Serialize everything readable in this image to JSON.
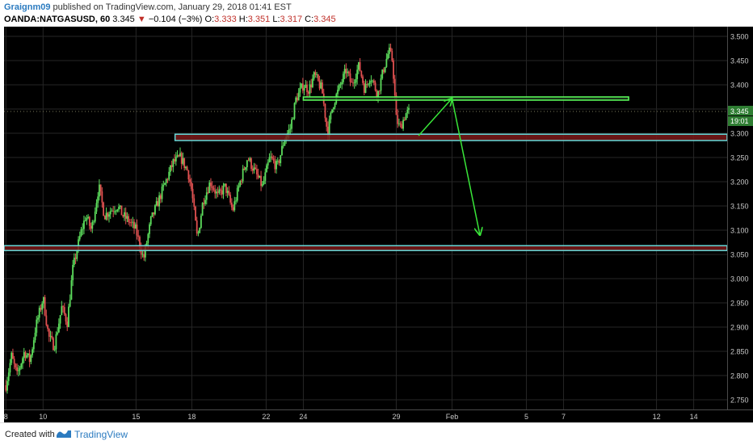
{
  "header": {
    "author": "Graignm09",
    "published": "published on TradingView.com, January 29, 2018 01:41 EST",
    "symbol": "OANDA:NATGASUSD, 60",
    "last": "3.345",
    "change_arrow": "▼",
    "change": "−0.104 (−3%)",
    "o_label": "O:",
    "o_value": "3.333",
    "h_label": "H:",
    "h_value": "3.351",
    "l_label": "L:",
    "l_value": "3.317",
    "c_label": "C:",
    "c_value": "3.345"
  },
  "footer": {
    "created_with": "Created with",
    "brand": "TradingView",
    "logo_icon": "tradingview-logo-icon"
  },
  "chart_data": {
    "type": "candlestick",
    "ylim": [
      2.73,
      3.52
    ],
    "y_ticks": [
      "3.500",
      "3.450",
      "3.400",
      "3.350",
      "3.300",
      "3.250",
      "3.200",
      "3.150",
      "3.100",
      "3.050",
      "3.000",
      "2.950",
      "2.900",
      "2.850",
      "2.800",
      "2.750"
    ],
    "x_ticks": [
      {
        "label": "8",
        "day": 0
      },
      {
        "label": "10",
        "day": 2
      },
      {
        "label": "15",
        "day": 7
      },
      {
        "label": "18",
        "day": 10
      },
      {
        "label": "22",
        "day": 14
      },
      {
        "label": "24",
        "day": 16
      },
      {
        "label": "29",
        "day": 21
      },
      {
        "label": "Feb",
        "day": 24
      },
      {
        "label": "5",
        "day": 28
      },
      {
        "label": "7",
        "day": 30
      },
      {
        "label": "12",
        "day": 35
      },
      {
        "label": "14",
        "day": 37
      }
    ],
    "x_range_days": [
      -0.1,
      38.8
    ],
    "current_price": "3.345",
    "countdown": "19:01",
    "price_line": 3.345,
    "path": [
      [
        0.0,
        2.78
      ],
      [
        0.3,
        2.84
      ],
      [
        0.6,
        2.8
      ],
      [
        1.0,
        2.85
      ],
      [
        1.3,
        2.83
      ],
      [
        1.6,
        2.9
      ],
      [
        2.0,
        2.96
      ],
      [
        2.3,
        2.88
      ],
      [
        2.6,
        2.86
      ],
      [
        3.0,
        2.94
      ],
      [
        3.3,
        2.91
      ],
      [
        3.6,
        3.02
      ],
      [
        4.0,
        3.09
      ],
      [
        4.3,
        3.13
      ],
      [
        4.6,
        3.1
      ],
      [
        5.0,
        3.19
      ],
      [
        5.3,
        3.13
      ],
      [
        5.6,
        3.14
      ],
      [
        6.0,
        3.15
      ],
      [
        6.3,
        3.13
      ],
      [
        6.6,
        3.12
      ],
      [
        7.0,
        3.1
      ],
      [
        7.4,
        3.04
      ],
      [
        7.8,
        3.12
      ],
      [
        8.2,
        3.16
      ],
      [
        8.6,
        3.2
      ],
      [
        9.0,
        3.24
      ],
      [
        9.4,
        3.25
      ],
      [
        9.8,
        3.22
      ],
      [
        10.0,
        3.18
      ],
      [
        10.3,
        3.08
      ],
      [
        10.6,
        3.16
      ],
      [
        11.0,
        3.2
      ],
      [
        11.4,
        3.17
      ],
      [
        11.8,
        3.19
      ],
      [
        12.2,
        3.14
      ],
      [
        12.6,
        3.2
      ],
      [
        13.0,
        3.25
      ],
      [
        13.4,
        3.22
      ],
      [
        13.8,
        3.19
      ],
      [
        14.2,
        3.25
      ],
      [
        14.6,
        3.23
      ],
      [
        15.0,
        3.29
      ],
      [
        15.3,
        3.31
      ],
      [
        15.6,
        3.37
      ],
      [
        16.0,
        3.4
      ],
      [
        16.3,
        3.39
      ],
      [
        16.6,
        3.42
      ],
      [
        17.0,
        3.39
      ],
      [
        17.3,
        3.3
      ],
      [
        17.6,
        3.36
      ],
      [
        18.0,
        3.4
      ],
      [
        18.3,
        3.43
      ],
      [
        18.6,
        3.4
      ],
      [
        19.0,
        3.44
      ],
      [
        19.3,
        3.39
      ],
      [
        19.6,
        3.42
      ],
      [
        20.0,
        3.38
      ],
      [
        20.3,
        3.43
      ],
      [
        20.6,
        3.47
      ],
      [
        20.8,
        3.45
      ],
      [
        21.0,
        3.33
      ],
      [
        21.2,
        3.31
      ],
      [
        21.5,
        3.34
      ],
      [
        21.7,
        3.345
      ]
    ],
    "zones": [
      {
        "name": "upper-resistance-zone",
        "y_top": 3.375,
        "y_bottom": 3.369,
        "x_start_day": 16.0,
        "x_end_day": 33.5,
        "fill": "#1c3a1c",
        "stroke": "#5cff5c"
      },
      {
        "name": "support-zone",
        "y_top": 3.298,
        "y_bottom": 3.285,
        "x_start_day": 9.1,
        "x_end": "right-edge",
        "fill": "#7a1a1a",
        "stroke": "#66d9d9"
      },
      {
        "name": "lower-support-zone",
        "y_top": 3.068,
        "y_bottom": 3.058,
        "x_start": "left-edge",
        "x_end": "right-edge",
        "fill": "#7a1a1a",
        "stroke": "#66d9d9"
      }
    ],
    "arrows": [
      {
        "from": [
          22.2,
          3.295
        ],
        "to": [
          24.0,
          3.372
        ]
      },
      {
        "from": [
          24.0,
          3.372
        ],
        "to": [
          25.5,
          3.09
        ]
      }
    ],
    "colors": {
      "up": "#5cdc5c",
      "down": "#e05050",
      "background": "#000000",
      "arrow": "#39e639",
      "price_tag": "#2e7d32"
    }
  }
}
